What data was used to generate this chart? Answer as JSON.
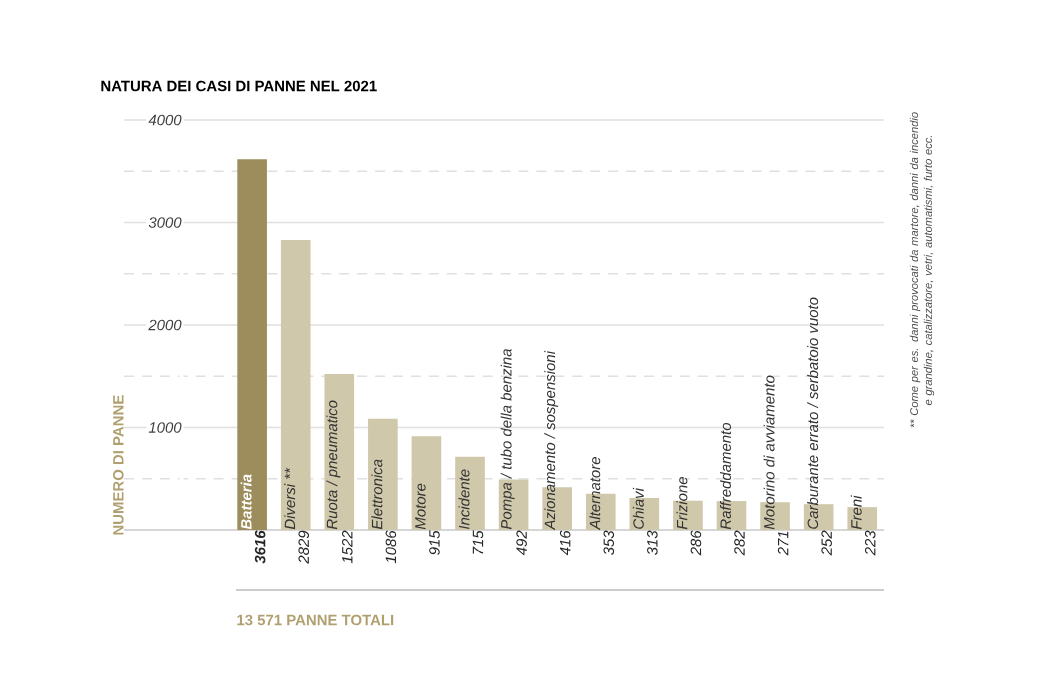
{
  "chart_data": {
    "type": "bar",
    "title": "NATURA DEI CASI DI PANNE NEL 2021",
    "ylabel": "NUMERO DI PANNE",
    "categories": [
      "Batteria",
      "Diversi **",
      "Ruota / pneumatico",
      "Elettronica",
      "Motore",
      "Incidente",
      "Pompa / tubo della benzina",
      "Azionamento / sospensioni",
      "Alternatore",
      "Chiavi",
      "Frizione",
      "Raffreddamento",
      "Motorino di avviamento",
      "Carburante errato / serbatoio vuoto",
      "Freni"
    ],
    "values": [
      3616,
      2829,
      1522,
      1086,
      915,
      715,
      492,
      416,
      353,
      313,
      286,
      282,
      271,
      252,
      223
    ],
    "colors": [
      "#9e8d5c",
      "#cfc8ab",
      "#cfc8ab",
      "#cfc8ab",
      "#cfc8ab",
      "#cfc8ab",
      "#cfc8ab",
      "#cfc8ab",
      "#cfc8ab",
      "#cfc8ab",
      "#cfc8ab",
      "#cfc8ab",
      "#cfc8ab",
      "#cfc8ab",
      "#cfc8ab"
    ],
    "data_labels": true,
    "ylim": [
      0,
      4000
    ],
    "yticks": [
      {
        "value": 500,
        "label": null
      },
      1000,
      {
        "value": 1500,
        "label": null
      },
      2000,
      {
        "value": 2500,
        "label": null
      },
      3000,
      {
        "value": 3500,
        "label": null
      },
      4000
    ],
    "grid": "y",
    "annotations": [
      "** Come per es. danni provocati da martore, danni da incendio e grandine, catalizzatore, vetri, automatismi, furto ecc.",
      "13 571 PANNE TOTALI"
    ]
  }
}
